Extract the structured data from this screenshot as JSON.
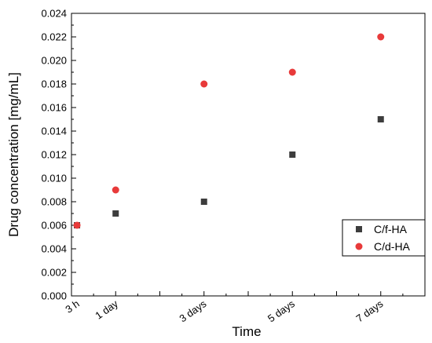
{
  "chart_data": {
    "type": "scatter",
    "xlabel": "Time",
    "ylabel": "Drug concentration [mg/mL]",
    "ylim": [
      0,
      0.024
    ],
    "yticks": [
      "0.000",
      "0.002",
      "0.004",
      "0.006",
      "0.008",
      "0.010",
      "0.012",
      "0.014",
      "0.016",
      "0.018",
      "0.020",
      "0.022",
      "0.024"
    ],
    "x_days": [
      0.125,
      1,
      3,
      5,
      7
    ],
    "xticks": [
      "3 h",
      "1 day",
      "3 days",
      "5 days",
      "7 days"
    ],
    "xlim_days": [
      0,
      8
    ],
    "grid": false,
    "legend_position": "bottom-right",
    "series": [
      {
        "name": "C/f-HA",
        "marker": "square",
        "color": "#3d3d3d",
        "values": [
          0.006,
          0.007,
          0.008,
          0.012,
          0.015
        ]
      },
      {
        "name": "C/d-HA",
        "marker": "circle",
        "color": "#e83a3a",
        "values": [
          0.006,
          0.009,
          0.018,
          0.019,
          0.022
        ]
      }
    ]
  }
}
